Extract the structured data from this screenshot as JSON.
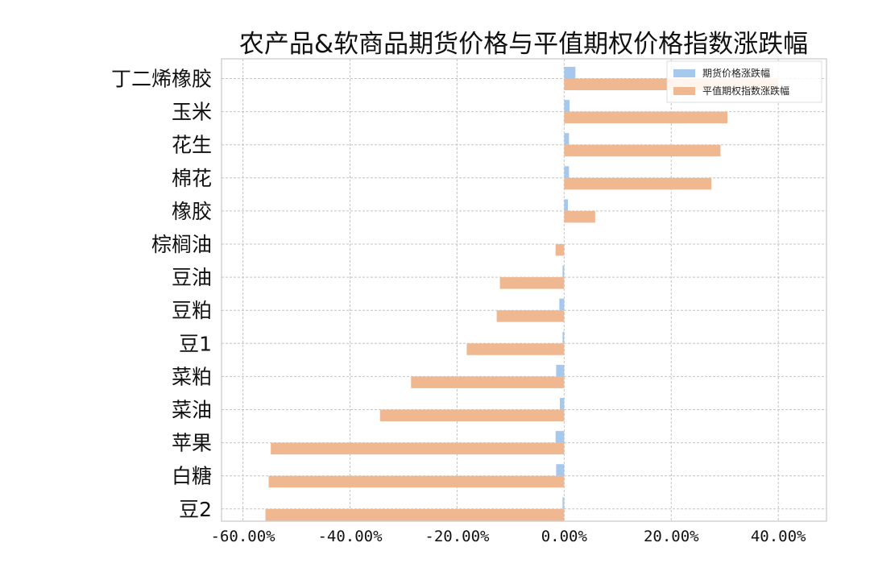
{
  "chart_data": {
    "type": "bar",
    "orientation": "horizontal",
    "title": "农产品&软商品期货价格与平值期权价格指数涨跌幅",
    "xlabel": "",
    "ylabel": "",
    "categories": [
      "丁二烯橡胶",
      "玉米",
      "花生",
      "棉花",
      "橡胶",
      "棕榈油",
      "豆油",
      "豆粕",
      "豆1",
      "菜粕",
      "菜油",
      "苹果",
      "白糖",
      "豆2"
    ],
    "series": [
      {
        "name": "期货价格涨跌幅",
        "color": "#a6c8ec",
        "values": [
          2.1,
          1.0,
          0.9,
          0.9,
          0.7,
          0.0,
          -0.3,
          -0.9,
          -0.3,
          -1.5,
          -0.8,
          -1.6,
          -1.5,
          -0.3
        ]
      },
      {
        "name": "平值期权指数涨跌幅",
        "color": "#f0b890",
        "values": [
          40.0,
          30.5,
          29.2,
          27.5,
          5.8,
          -1.6,
          -12.0,
          -12.6,
          -18.2,
          -28.6,
          -34.4,
          -54.8,
          -55.2,
          -55.8
        ]
      }
    ],
    "xlim": [
      -64,
      49
    ],
    "xticks": [
      -60,
      -40,
      -20,
      0,
      20,
      40
    ],
    "xtick_labels": [
      "-60.00%",
      "-40.00%",
      "-20.00%",
      "0.00%",
      "20.00%",
      "40.00%"
    ],
    "grid": true,
    "legend_position": "top-right"
  }
}
